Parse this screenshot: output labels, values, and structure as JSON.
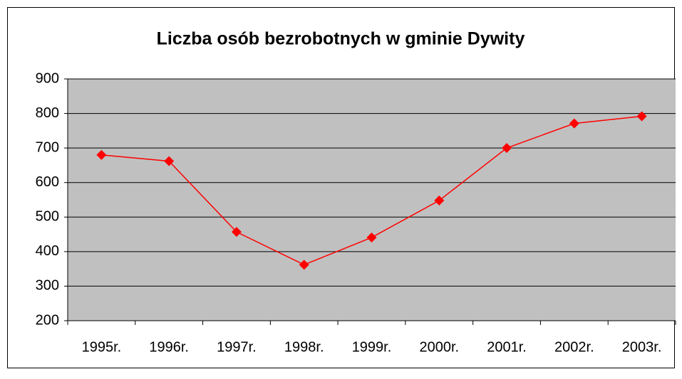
{
  "chart_data": {
    "type": "line",
    "title": "Liczba osób bezrobotnych w gminie Dywity",
    "categories": [
      "1995r.",
      "1996r.",
      "1997r.",
      "1998r.",
      "1999r.",
      "2000r.",
      "2001r.",
      "2002r.",
      "2003r."
    ],
    "series": [
      {
        "name": "Liczba osób bezrobotnych",
        "color": "#ff0000",
        "values": [
          680,
          662,
          457,
          362,
          441,
          548,
          700,
          771,
          792
        ]
      }
    ],
    "ylim": [
      200,
      900
    ],
    "yticks": [
      200,
      300,
      400,
      500,
      600,
      700,
      800,
      900
    ],
    "grid": true,
    "plot_background": "#c0c0c0"
  }
}
